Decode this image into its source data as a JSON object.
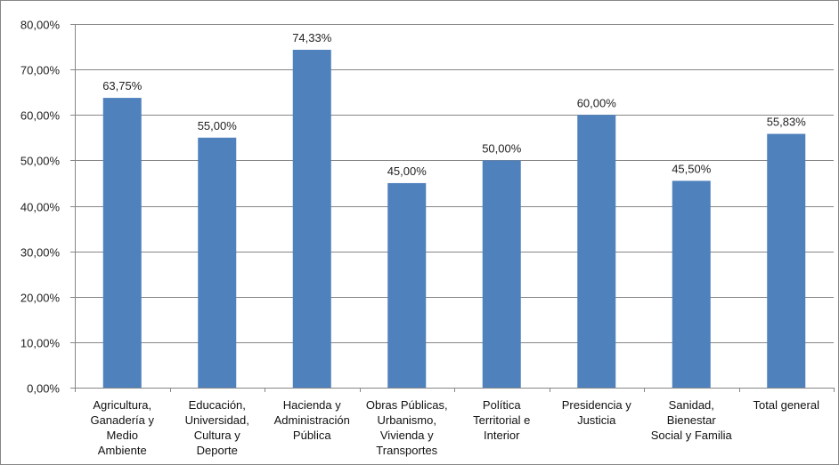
{
  "chart_data": {
    "type": "bar",
    "categories": [
      [
        "Agricultura,",
        "Ganadería y",
        "Medio",
        "Ambiente"
      ],
      [
        "Educación,",
        "Universidad,",
        "Cultura y",
        "Deporte"
      ],
      [
        "Hacienda y",
        "Administración",
        "Pública"
      ],
      [
        "Obras Públicas,",
        "Urbanismo,",
        "Vivienda y",
        "Transportes"
      ],
      [
        "Política",
        "Territorial e",
        "Interior"
      ],
      [
        "Presidencia y",
        "Justicia"
      ],
      [
        "Sanidad,",
        "Bienestar",
        "Social y Familia"
      ],
      [
        "Total general"
      ]
    ],
    "values": [
      63.75,
      55.0,
      74.33,
      45.0,
      50.0,
      60.0,
      45.5,
      55.83
    ],
    "data_labels": [
      "63,75%",
      "55,00%",
      "74,33%",
      "45,00%",
      "50,00%",
      "60,00%",
      "45,50%",
      "55,83%"
    ],
    "y_ticks": [
      "0,00%",
      "10,00%",
      "20,00%",
      "30,00%",
      "40,00%",
      "50,00%",
      "60,00%",
      "70,00%",
      "80,00%"
    ],
    "ylim": [
      0,
      80
    ],
    "grid": true,
    "legend": "none",
    "colors": {
      "bar": "#4f81bd",
      "grid": "#868686",
      "axis": "#868686"
    }
  }
}
